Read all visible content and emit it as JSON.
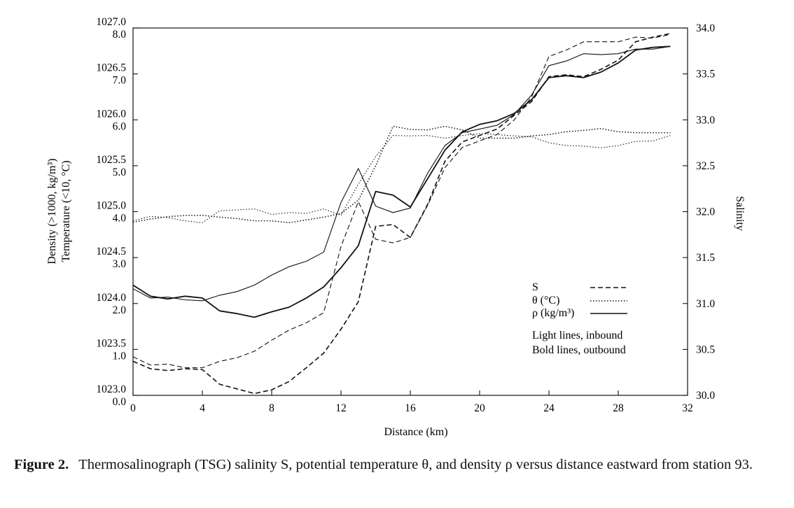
{
  "chart_data": {
    "type": "line",
    "xlabel": "Distance (km)",
    "x_ticks": [
      0,
      4,
      8,
      12,
      16,
      20,
      24,
      28,
      32
    ],
    "xlim": [
      0,
      32
    ],
    "y_left_label_1": "Density (>1000, kg/m³)",
    "y_left_label_2": "Temperature (<10, °C)",
    "y_left_density_ticks": [
      "1023.0",
      "1023.5",
      "1024.0",
      "1024.5",
      "1025.0",
      "1025.5",
      "1026.0",
      "1026.5",
      "1027.0"
    ],
    "y_left_temperature_ticks": [
      "0.0",
      "1.0",
      "2.0",
      "3.0",
      "4.0",
      "5.0",
      "6.0",
      "7.0",
      "8.0"
    ],
    "density_lim": [
      1023.0,
      1027.0
    ],
    "temperature_lim": [
      0.0,
      8.0
    ],
    "y_right_label": "Salinity",
    "y_right_ticks": [
      "30.0",
      "30.5",
      "31.0",
      "31.5",
      "32.0",
      "32.5",
      "33.0",
      "33.5",
      "34.0"
    ],
    "salinity_lim": [
      30.0,
      34.0
    ],
    "grid": false,
    "legend_position": "lower-right",
    "legend": [
      {
        "label": "S",
        "style": "dashed"
      },
      {
        "label": "θ (°C)",
        "style": "dotted"
      },
      {
        "label": "ρ (kg/m³)",
        "style": "solid"
      }
    ],
    "legend_notes": [
      "Light lines, inbound",
      "Bold lines, outbound"
    ],
    "series": [
      {
        "variable": "S",
        "pass": "inbound",
        "style": "dashed",
        "weight": "light",
        "axis": "salinity",
        "x": [
          0,
          1,
          2,
          3,
          4,
          5,
          6,
          7,
          8,
          9,
          10,
          11,
          12,
          13,
          14,
          15,
          16,
          17,
          18,
          19,
          20,
          21,
          22,
          23,
          24,
          25,
          26,
          27,
          28,
          29,
          30,
          31
        ],
        "y": [
          30.42,
          30.33,
          30.34,
          30.3,
          30.3,
          30.37,
          30.41,
          30.48,
          30.6,
          30.71,
          30.79,
          30.9,
          31.62,
          32.11,
          31.7,
          31.66,
          31.72,
          32.07,
          32.48,
          32.7,
          32.77,
          32.84,
          33.0,
          33.25,
          33.69,
          33.76,
          33.85,
          33.85,
          33.85,
          33.9,
          33.89,
          33.93
        ]
      },
      {
        "variable": "S",
        "pass": "outbound",
        "style": "dashed",
        "weight": "bold",
        "axis": "salinity",
        "x": [
          0,
          1,
          2,
          3,
          4,
          5,
          6,
          7,
          8,
          9,
          10,
          11,
          12,
          13,
          14,
          15,
          16,
          17,
          18,
          19,
          20,
          21,
          22,
          23,
          24,
          25,
          26,
          27,
          28,
          29,
          30,
          31
        ],
        "y": [
          30.37,
          30.29,
          30.27,
          30.29,
          30.28,
          30.12,
          30.07,
          30.02,
          30.06,
          30.15,
          30.3,
          30.46,
          30.72,
          31.02,
          31.84,
          31.86,
          31.72,
          32.08,
          32.55,
          32.76,
          32.83,
          32.9,
          33.05,
          33.2,
          33.47,
          33.49,
          33.47,
          33.55,
          33.65,
          33.85,
          33.9,
          33.94
        ]
      },
      {
        "variable": "θ (°C)",
        "pass": "inbound",
        "style": "dotted",
        "weight": "light",
        "axis": "temperature",
        "x": [
          0,
          1,
          2,
          3,
          4,
          5,
          6,
          7,
          8,
          9,
          10,
          11,
          12,
          13,
          14,
          15,
          16,
          17,
          18,
          19,
          20,
          21,
          22,
          23,
          24,
          25,
          26,
          27,
          28,
          29,
          30,
          31
        ],
        "y": [
          3.8,
          3.9,
          3.87,
          3.8,
          3.76,
          4.02,
          4.04,
          4.06,
          3.94,
          3.98,
          3.96,
          4.06,
          3.92,
          4.6,
          5.2,
          5.66,
          5.65,
          5.66,
          5.6,
          5.66,
          5.7,
          5.68,
          5.65,
          5.63,
          5.5,
          5.44,
          5.43,
          5.39,
          5.44,
          5.53,
          5.54,
          5.66
        ]
      },
      {
        "variable": "θ (°C)",
        "pass": "outbound",
        "style": "dotted",
        "weight": "bold",
        "axis": "temperature",
        "x": [
          0,
          1,
          2,
          3,
          4,
          5,
          6,
          7,
          8,
          9,
          10,
          11,
          12,
          13,
          14,
          15,
          16,
          17,
          18,
          19,
          20,
          21,
          22,
          23,
          24,
          25,
          26,
          27,
          28,
          29,
          30,
          31
        ],
        "y": [
          3.77,
          3.84,
          3.89,
          3.92,
          3.92,
          3.88,
          3.85,
          3.8,
          3.8,
          3.76,
          3.82,
          3.88,
          3.96,
          4.25,
          5.0,
          5.86,
          5.79,
          5.78,
          5.86,
          5.78,
          5.6,
          5.6,
          5.6,
          5.65,
          5.68,
          5.74,
          5.77,
          5.81,
          5.74,
          5.72,
          5.72,
          5.72
        ]
      },
      {
        "variable": "ρ (kg/m³)",
        "pass": "inbound",
        "style": "solid",
        "weight": "light",
        "axis": "density",
        "x": [
          0,
          1,
          2,
          3,
          4,
          5,
          6,
          7,
          8,
          9,
          10,
          11,
          12,
          13,
          14,
          15,
          16,
          17,
          18,
          19,
          20,
          21,
          22,
          23,
          24,
          25,
          26,
          27,
          28,
          29,
          30,
          31
        ],
        "y": [
          1024.16,
          1024.06,
          1024.07,
          1024.04,
          1024.03,
          1024.09,
          1024.13,
          1024.2,
          1024.31,
          1024.4,
          1024.46,
          1024.56,
          1025.1,
          1025.47,
          1025.06,
          1024.99,
          1025.04,
          1025.42,
          1025.72,
          1025.86,
          1025.9,
          1025.94,
          1026.06,
          1026.27,
          1026.59,
          1026.64,
          1026.72,
          1026.71,
          1026.72,
          1026.77,
          1026.77,
          1026.8
        ]
      },
      {
        "variable": "ρ (kg/m³)",
        "pass": "outbound",
        "style": "solid",
        "weight": "bold",
        "axis": "density",
        "x": [
          0,
          1,
          2,
          3,
          4,
          5,
          6,
          7,
          8,
          9,
          10,
          11,
          12,
          13,
          14,
          15,
          16,
          17,
          18,
          19,
          20,
          21,
          22,
          23,
          24,
          25,
          26,
          27,
          28,
          29,
          30,
          31
        ],
        "y": [
          1024.2,
          1024.08,
          1024.05,
          1024.08,
          1024.06,
          1023.92,
          1023.89,
          1023.85,
          1023.91,
          1023.96,
          1024.06,
          1024.18,
          1024.39,
          1024.63,
          1025.22,
          1025.18,
          1025.05,
          1025.36,
          1025.67,
          1025.87,
          1025.95,
          1025.99,
          1026.07,
          1026.22,
          1026.46,
          1026.48,
          1026.46,
          1026.52,
          1026.62,
          1026.76,
          1026.79,
          1026.8
        ]
      }
    ]
  },
  "caption": {
    "label": "Figure 2.",
    "text": "Thermosalinograph (TSG) salinity S, potential temperature θ, and density ρ versus distance eastward from station 93."
  }
}
